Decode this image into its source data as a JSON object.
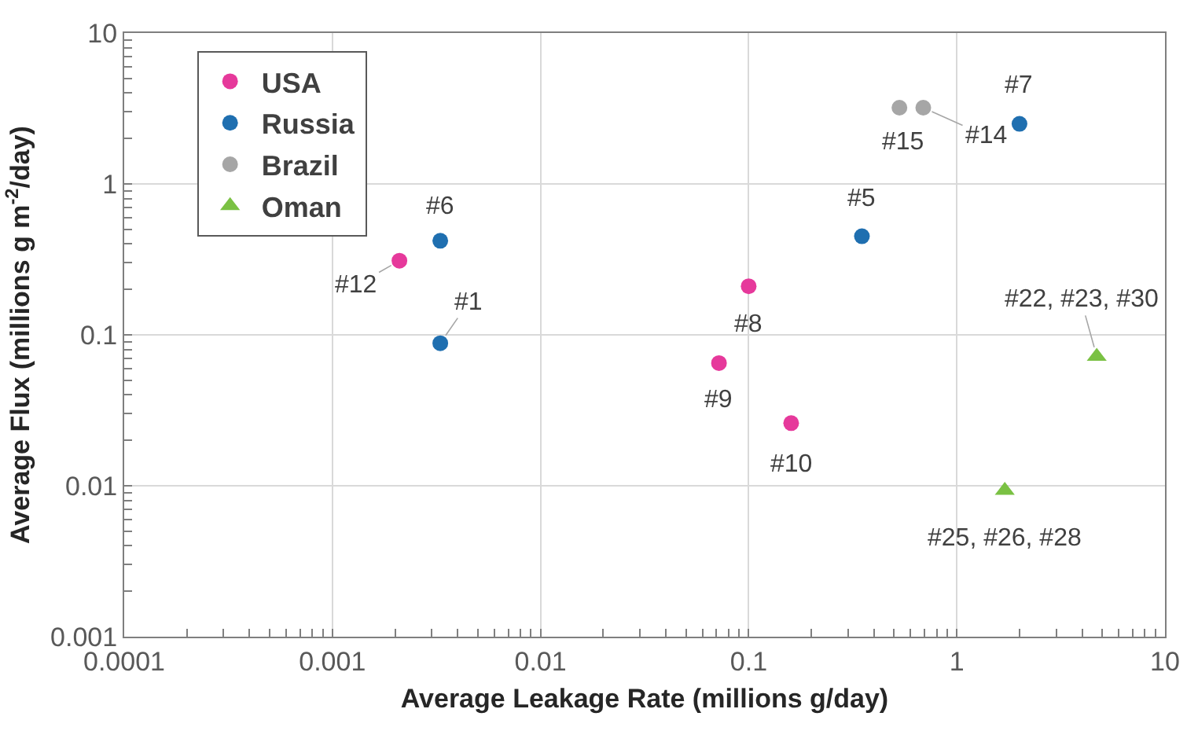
{
  "chart_data": {
    "type": "scatter",
    "xlabel": "Average Leakage Rate (millions g/day)",
    "ylabel": "Average Flux (millions g m$^{-2}$/day)",
    "log": "xy",
    "xlim": [
      0.0001,
      10
    ],
    "xticks": [
      0.0001,
      0.001,
      0.01,
      0.1,
      1,
      10
    ],
    "ylim": [
      0.001,
      10
    ],
    "yticks": [
      0.001,
      0.01,
      0.1,
      1,
      10
    ],
    "grid": true,
    "legend": "top left",
    "series": [
      {
        "name": "USA",
        "color": "#e6399b",
        "marker": "circle",
        "x": [
          0.0021,
          0.1,
          0.072,
          0.16
        ],
        "values": [
          0.31,
          0.21,
          0.065,
          0.026
        ]
      },
      {
        "name": "Russia",
        "color": "#1f6fb0",
        "marker": "circle",
        "x": [
          0.0033,
          0.0033,
          0.35,
          2
        ],
        "values": [
          0.42,
          0.088,
          0.45,
          2.5
        ]
      },
      {
        "name": "Brazil",
        "color": "#a6a6a6",
        "marker": "circle",
        "x": [
          0.53,
          0.69
        ],
        "values": [
          3.2,
          3.2
        ]
      },
      {
        "name": "Oman",
        "color": "#7ac143",
        "marker": "triangle",
        "x": [
          4.7,
          1.7
        ],
        "values": [
          0.072,
          0.0093
        ]
      }
    ],
    "annotations": [
      {
        "text": "#12",
        "x": 0.0021,
        "y": 0.31
      },
      {
        "text": "#6",
        "x": 0.0033,
        "y": 0.42
      },
      {
        "text": "#1",
        "x": 0.0033,
        "y": 0.088
      },
      {
        "text": "#8",
        "x": 0.1,
        "y": 0.21
      },
      {
        "text": "#9",
        "x": 0.072,
        "y": 0.065
      },
      {
        "text": "#10",
        "x": 0.16,
        "y": 0.026
      },
      {
        "text": "#5",
        "x": 0.35,
        "y": 0.45
      },
      {
        "text": "#15",
        "x": 0.53,
        "y": 3.2
      },
      {
        "text": "#14",
        "x": 0.69,
        "y": 3.2
      },
      {
        "text": "#7",
        "x": 2,
        "y": 2.5
      },
      {
        "text": "#22, #23, #30",
        "x": 4.7,
        "y": 0.072
      },
      {
        "text": "#25, #26, #28",
        "x": 1.7,
        "y": 0.0093
      }
    ]
  }
}
